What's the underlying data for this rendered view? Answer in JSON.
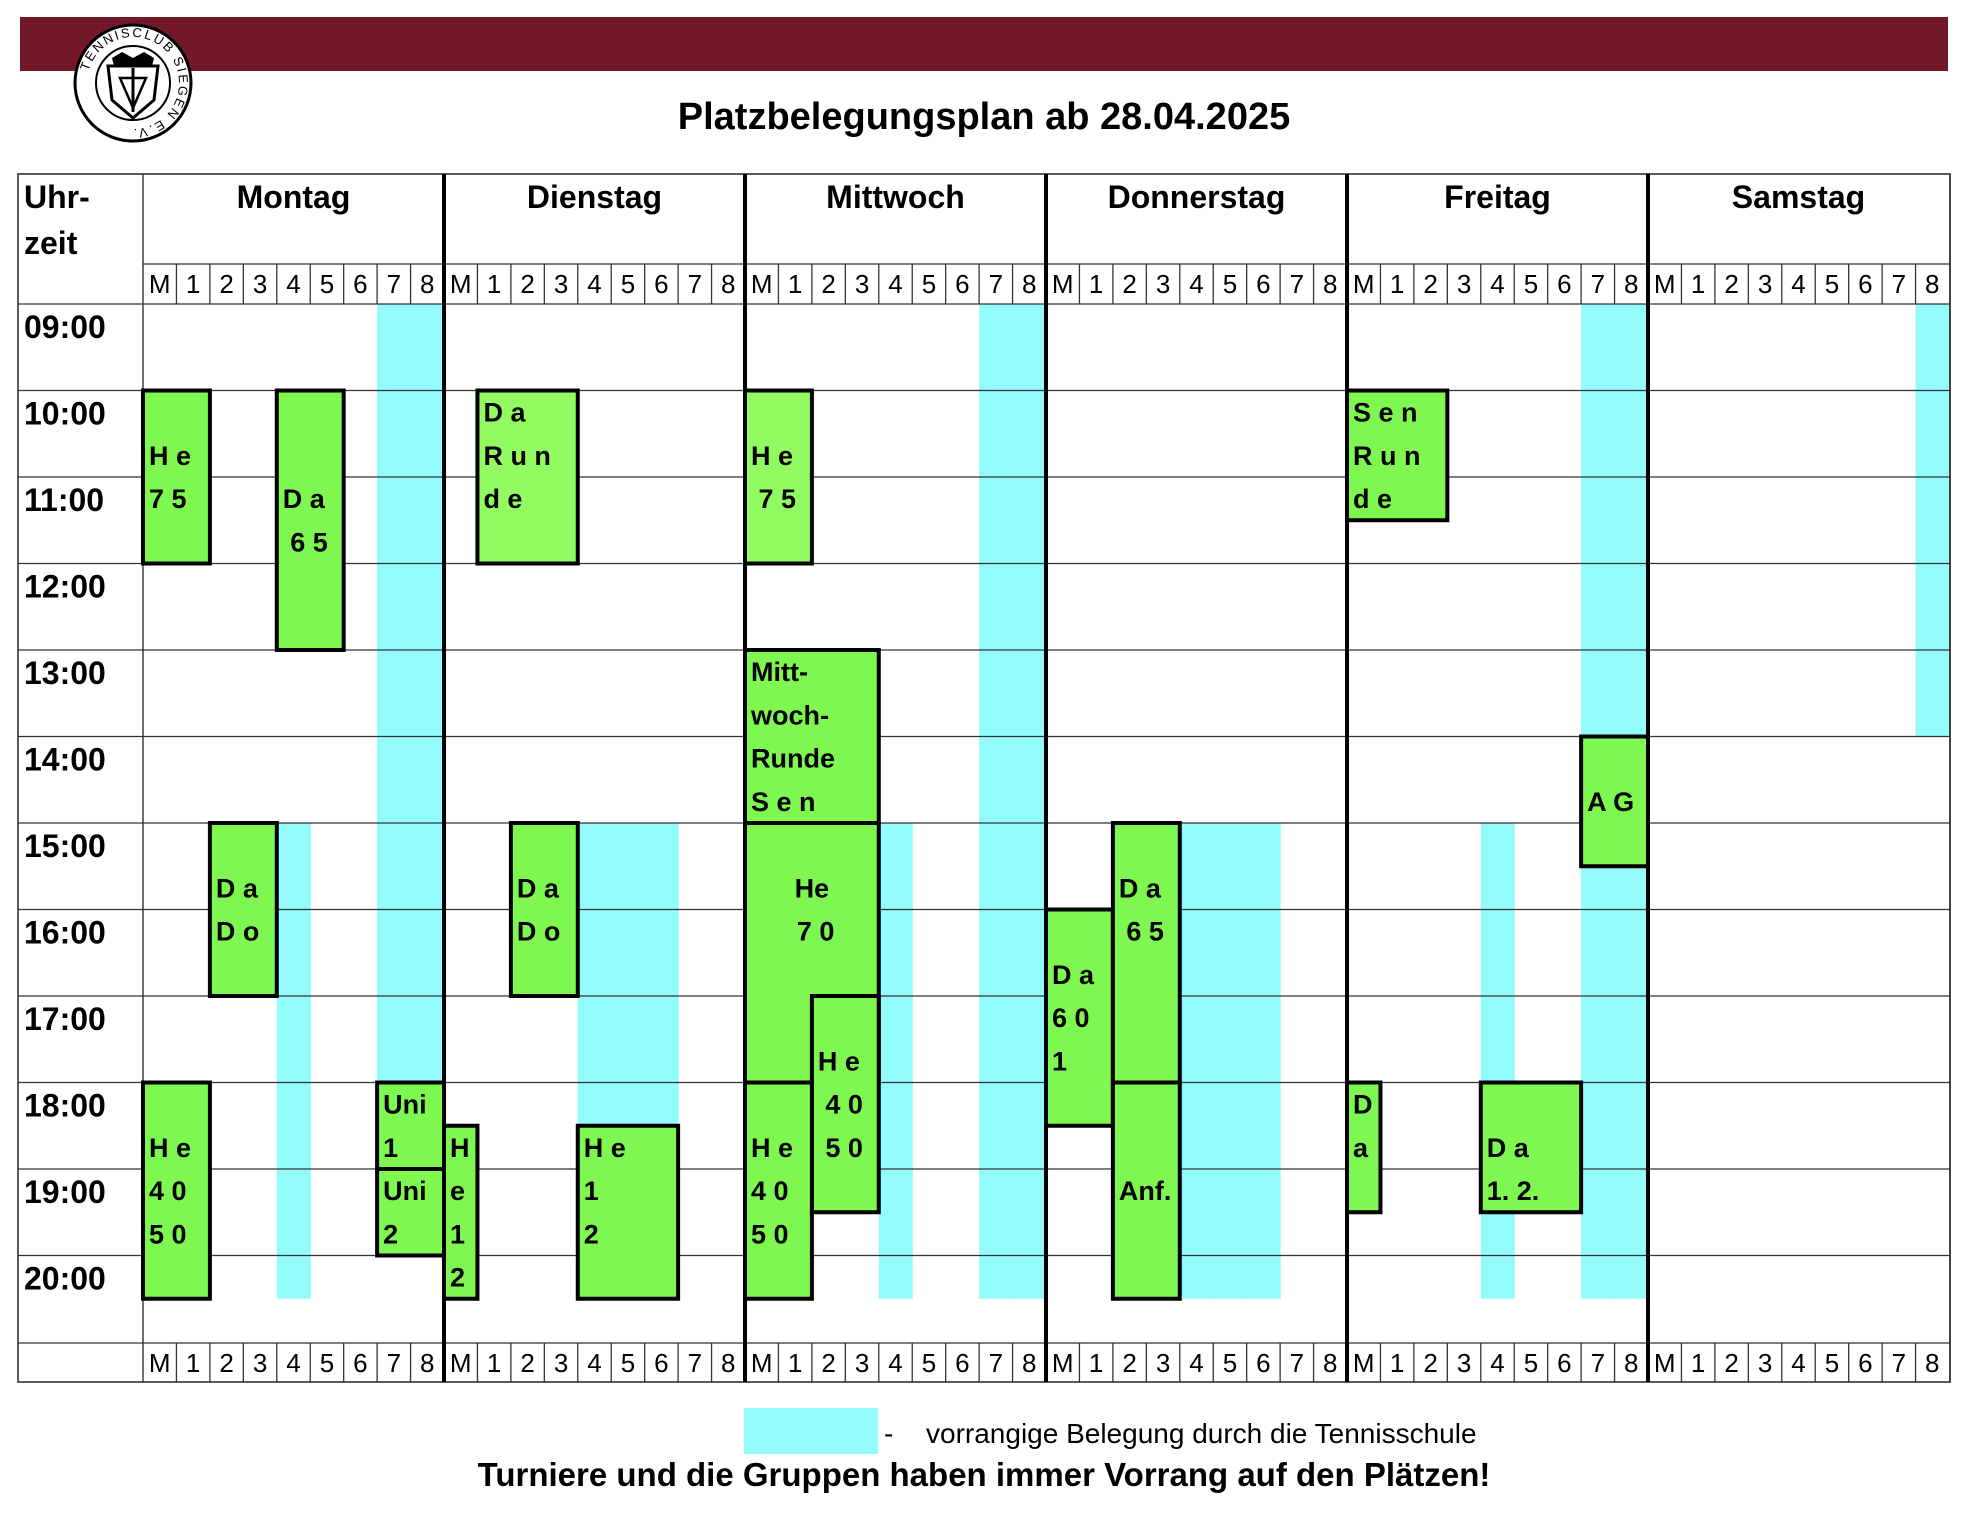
{
  "header": {
    "title": "Platzbelegungsplan ab 28.04.2025",
    "logo_text": "TENNISCLUB SIEGEN E.V.",
    "bar_color": "#731829"
  },
  "table": {
    "time_header_lines": [
      "Uhr-",
      "zeit"
    ],
    "days": [
      "Montag",
      "Dienstag",
      "Mittwoch",
      "Donnerstag",
      "Freitag",
      "Samstag"
    ],
    "court_labels": [
      "M",
      "1",
      "2",
      "3",
      "4",
      "5",
      "6",
      "7",
      "8"
    ],
    "times": [
      "09:00",
      "10:00",
      "11:00",
      "12:00",
      "13:00",
      "14:00",
      "15:00",
      "16:00",
      "17:00",
      "18:00",
      "19:00",
      "20:00"
    ],
    "school_color": "#93fbfc",
    "booking_colors": {
      "dark": "#7ef850",
      "light": "#93fb62"
    },
    "school_slots": [
      {
        "day": 0,
        "court": 7,
        "from": "09:00",
        "to": "18:00"
      },
      {
        "day": 0,
        "court": 8,
        "from": "09:00",
        "to": "18:00"
      },
      {
        "day": 0,
        "court": 4,
        "from": "15:00",
        "to": "20:30"
      },
      {
        "day": 1,
        "court": 4,
        "from": "15:00",
        "to": "18:30"
      },
      {
        "day": 1,
        "court": 5,
        "from": "15:00",
        "to": "18:30"
      },
      {
        "day": 1,
        "court": 6,
        "from": "15:00",
        "to": "18:30"
      },
      {
        "day": 2,
        "court": 7,
        "from": "09:00",
        "to": "20:30"
      },
      {
        "day": 2,
        "court": 8,
        "from": "09:00",
        "to": "20:30"
      },
      {
        "day": 2,
        "court": 4,
        "from": "15:00",
        "to": "20:30"
      },
      {
        "day": 3,
        "court": 4,
        "from": "15:00",
        "to": "20:30"
      },
      {
        "day": 3,
        "court": 5,
        "from": "15:00",
        "to": "20:30"
      },
      {
        "day": 3,
        "court": 6,
        "from": "15:00",
        "to": "20:30"
      },
      {
        "day": 4,
        "court": 7,
        "from": "09:00",
        "to": "20:30"
      },
      {
        "day": 4,
        "court": 8,
        "from": "09:00",
        "to": "20:30"
      },
      {
        "day": 4,
        "court": 4,
        "from": "15:00",
        "to": "20:30"
      },
      {
        "day": 5,
        "court": 8,
        "from": "09:00",
        "to": "14:00"
      }
    ],
    "bookings": [
      {
        "day": 0,
        "col": 0,
        "span": 2,
        "from": "10:00",
        "to": "12:00",
        "lines": [
          "H e",
          "7 5"
        ],
        "text_at": "10:30",
        "tone": "dark"
      },
      {
        "day": 0,
        "col": 4,
        "span": 2,
        "from": "10:00",
        "to": "13:00",
        "lines": [
          "D a",
          " 6 5"
        ],
        "text_at": "11:00",
        "tone": "dark"
      },
      {
        "day": 0,
        "col": 2,
        "span": 2,
        "from": "15:00",
        "to": "17:00",
        "lines": [
          "D a",
          "D o"
        ],
        "text_at": "15:30",
        "tone": "dark"
      },
      {
        "day": 0,
        "col": 0,
        "span": 2,
        "from": "18:00",
        "to": "20:30",
        "lines": [
          "H e",
          "4 0",
          "5 0"
        ],
        "text_at": "18:30",
        "tone": "dark"
      },
      {
        "day": 0,
        "col": 7,
        "span": 2,
        "from": "18:00",
        "to": "19:00",
        "lines": [
          "Uni",
          "1"
        ],
        "text_at": "18:00",
        "tone": "dark"
      },
      {
        "day": 0,
        "col": 7,
        "span": 2,
        "from": "19:00",
        "to": "20:00",
        "lines": [
          "Uni",
          "2"
        ],
        "text_at": "19:00",
        "tone": "dark"
      },
      {
        "day": 1,
        "col": 1,
        "span": 3,
        "from": "10:00",
        "to": "12:00",
        "lines": [
          "D a",
          "R u n",
          "d e"
        ],
        "text_at": "10:00",
        "tone": "light"
      },
      {
        "day": 1,
        "col": 2,
        "span": 2,
        "from": "15:00",
        "to": "17:00",
        "lines": [
          "D a",
          "D o"
        ],
        "text_at": "15:30",
        "tone": "dark"
      },
      {
        "day": 1,
        "col": 0,
        "span": 1,
        "from": "18:30",
        "to": "20:30",
        "lines": [
          "H",
          "e",
          "1",
          "2"
        ],
        "text_at": "18:30",
        "tone": "dark"
      },
      {
        "day": 1,
        "col": 4,
        "span": 3,
        "from": "18:30",
        "to": "20:30",
        "lines": [
          "H e",
          "1",
          "2"
        ],
        "text_at": "18:30",
        "tone": "dark"
      },
      {
        "day": 2,
        "col": 0,
        "span": 2,
        "from": "10:00",
        "to": "12:00",
        "lines": [
          "H e",
          " 7 5"
        ],
        "text_at": "10:30",
        "tone": "light"
      },
      {
        "day": 2,
        "col": 0,
        "span": 4,
        "from": "13:00",
        "to": "15:00",
        "lines": [
          "Mitt-",
          "woch-",
          "Runde",
          "S e n"
        ],
        "text_at": "13:00",
        "tone": "dark"
      },
      {
        "day": 2,
        "col": 0,
        "span": 4,
        "from": "15:00",
        "to": "18:00",
        "lines": [
          "He",
          " 7 0"
        ],
        "text_at": "15:30",
        "tone": "dark",
        "center": true
      },
      {
        "day": 2,
        "col": 2,
        "span": 2,
        "from": "17:00",
        "to": "19:30",
        "lines": [
          "H e",
          " 4 0",
          " 5 0"
        ],
        "text_at": "17:30",
        "tone": "dark"
      },
      {
        "day": 2,
        "col": 0,
        "span": 2,
        "from": "18:00",
        "to": "20:30",
        "lines": [
          "H e",
          "4 0",
          "5 0"
        ],
        "text_at": "18:30",
        "tone": "dark"
      },
      {
        "day": 3,
        "col": 0,
        "span": 2,
        "from": "16:00",
        "to": "18:30",
        "lines": [
          "D a",
          "6 0",
          "1"
        ],
        "text_at": "16:30",
        "tone": "dark"
      },
      {
        "day": 3,
        "col": 2,
        "span": 2,
        "from": "15:00",
        "to": "18:00",
        "lines": [
          "D a",
          " 6 5"
        ],
        "text_at": "15:30",
        "tone": "dark"
      },
      {
        "day": 3,
        "col": 2,
        "span": 2,
        "from": "18:00",
        "to": "20:30",
        "lines": [
          "Anf."
        ],
        "text_at": "19:00",
        "tone": "dark"
      },
      {
        "day": 4,
        "col": 0,
        "span": 3,
        "from": "10:00",
        "to": "11:30",
        "lines": [
          "S e n",
          "R u n",
          "d e"
        ],
        "text_at": "10:00",
        "tone": "dark"
      },
      {
        "day": 4,
        "col": 7,
        "span": 2,
        "from": "14:00",
        "to": "15:30",
        "lines": [
          "A G"
        ],
        "text_at": "14:30",
        "tone": "dark"
      },
      {
        "day": 4,
        "col": 0,
        "span": 1,
        "from": "18:00",
        "to": "19:30",
        "lines": [
          "D",
          "a"
        ],
        "text_at": "18:00",
        "tone": "dark"
      },
      {
        "day": 4,
        "col": 4,
        "span": 3,
        "from": "18:00",
        "to": "19:30",
        "lines": [
          "D a",
          "1. 2."
        ],
        "text_at": "18:30",
        "tone": "dark"
      }
    ]
  },
  "legend": {
    "dash": "-",
    "text": "vorrangige Belegung durch die Tennisschule",
    "note": "Turniere und die Gruppen haben immer Vorrang auf den Plätzen!"
  }
}
